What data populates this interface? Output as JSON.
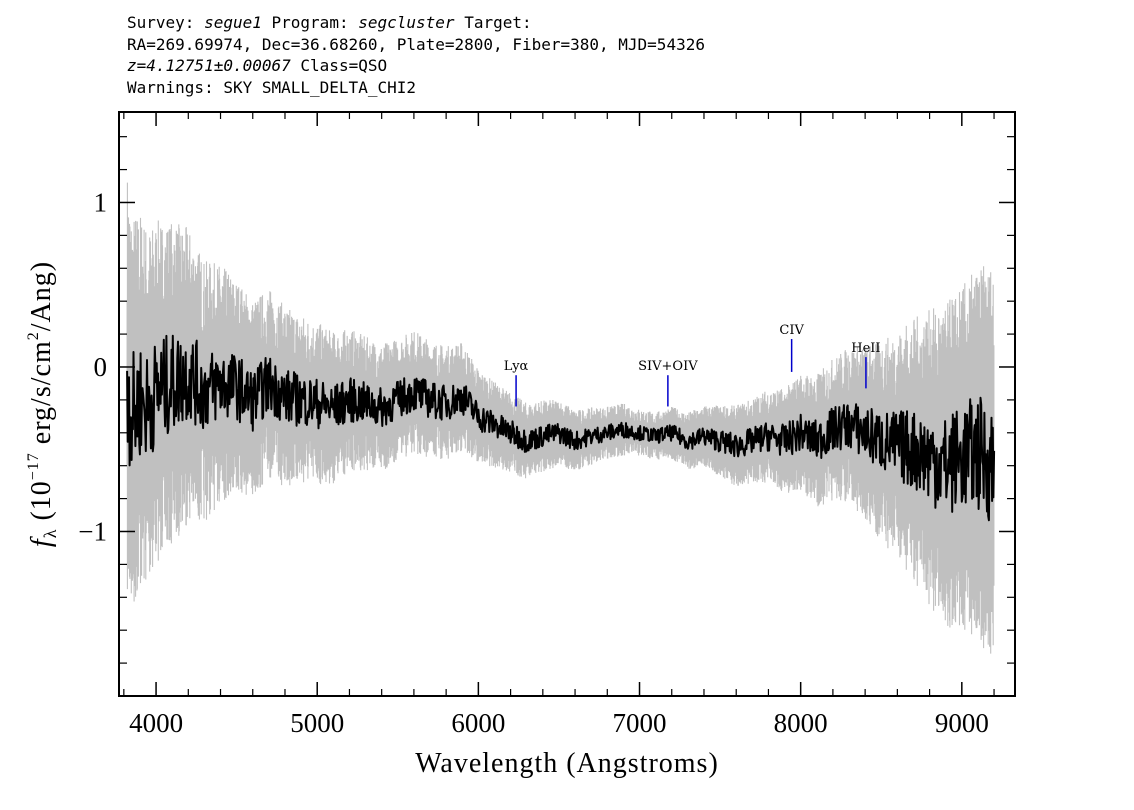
{
  "header": {
    "survey_label": "Survey:",
    "survey": "segue1",
    "program_label": "Program:",
    "program": "segcluster",
    "target_label": "Target:",
    "line2": "RA=269.69974, Dec=36.68260, Plate=2800, Fiber=380, MJD=54326",
    "redshift": "z=4.12751±0.00067",
    "class": "Class=QSO",
    "warnings": "Warnings: SKY SMALL_DELTA_CHI2"
  },
  "chart_data": {
    "type": "line",
    "xlabel": "Wavelength (Angstroms)",
    "ylabel_prefix": "f",
    "ylabel_sub": "λ",
    "ylabel_unit_a": "(10",
    "ylabel_exp": "−17",
    "ylabel_unit_b": " erg/s/cm",
    "ylabel_exp2": "2",
    "ylabel_unit_c": "/Ang)",
    "xlim": [
      3770,
      9330
    ],
    "ylim": [
      -2.0,
      1.55
    ],
    "x_ticks": [
      4000,
      5000,
      6000,
      7000,
      8000,
      9000
    ],
    "x_tick_labels": [
      "4000",
      "5000",
      "6000",
      "7000",
      "8000",
      "9000"
    ],
    "y_ticks": [
      -1,
      0,
      1
    ],
    "y_tick_labels": [
      "−1",
      "0",
      "1"
    ],
    "grid": false,
    "series": [
      {
        "role": "error",
        "color": "#c0c0c0",
        "x": [
          3820,
          3850,
          3900,
          3950,
          4000,
          4100,
          4200,
          4300,
          4400,
          4500,
          4600,
          4700,
          4800,
          4900,
          5000,
          5100,
          5200,
          5300,
          5400,
          5500,
          5600,
          5700,
          5800,
          5900,
          6000,
          6100,
          6200,
          6300,
          6400,
          6500,
          6600,
          6700,
          6800,
          6900,
          7000,
          7100,
          7200,
          7300,
          7400,
          7500,
          7600,
          7700,
          7800,
          7900,
          8000,
          8100,
          8200,
          8300,
          8400,
          8500,
          8600,
          8700,
          8800,
          8900,
          9000,
          9100,
          9200
        ],
        "values": [
          0.9,
          0.85,
          0.8,
          0.75,
          0.72,
          0.68,
          0.62,
          0.55,
          0.5,
          0.45,
          0.42,
          0.4,
          0.38,
          0.36,
          0.34,
          0.32,
          0.3,
          0.28,
          0.27,
          0.26,
          0.26,
          0.25,
          0.24,
          0.23,
          0.2,
          0.18,
          0.17,
          0.16,
          0.15,
          0.14,
          0.13,
          0.12,
          0.11,
          0.11,
          0.1,
          0.1,
          0.11,
          0.12,
          0.13,
          0.15,
          0.17,
          0.18,
          0.2,
          0.22,
          0.25,
          0.28,
          0.3,
          0.33,
          0.37,
          0.42,
          0.48,
          0.55,
          0.62,
          0.68,
          0.72,
          0.78,
          0.85
        ]
      },
      {
        "role": "flux",
        "color": "#000000",
        "x": [
          3820,
          3850,
          3900,
          3950,
          4000,
          4100,
          4200,
          4300,
          4400,
          4500,
          4600,
          4700,
          4800,
          4900,
          5000,
          5100,
          5200,
          5300,
          5400,
          5500,
          5600,
          5700,
          5800,
          5900,
          6000,
          6100,
          6200,
          6300,
          6400,
          6500,
          6600,
          6700,
          6800,
          6900,
          7000,
          7100,
          7200,
          7300,
          7400,
          7500,
          7600,
          7700,
          7800,
          7900,
          8000,
          8100,
          8200,
          8300,
          8400,
          8500,
          8600,
          8700,
          8800,
          8900,
          9000,
          9100,
          9200
        ],
        "values": [
          -0.1,
          -0.3,
          -0.2,
          -0.25,
          -0.15,
          -0.1,
          -0.05,
          -0.15,
          -0.1,
          -0.12,
          -0.2,
          -0.1,
          -0.18,
          -0.2,
          -0.22,
          -0.25,
          -0.2,
          -0.22,
          -0.25,
          -0.2,
          -0.15,
          -0.2,
          -0.22,
          -0.18,
          -0.3,
          -0.35,
          -0.4,
          -0.45,
          -0.42,
          -0.4,
          -0.45,
          -0.42,
          -0.4,
          -0.38,
          -0.4,
          -0.42,
          -0.4,
          -0.45,
          -0.42,
          -0.45,
          -0.48,
          -0.45,
          -0.42,
          -0.45,
          -0.4,
          -0.45,
          -0.38,
          -0.35,
          -0.4,
          -0.45,
          -0.48,
          -0.5,
          -0.55,
          -0.6,
          -0.55,
          -0.52,
          -0.6
        ]
      }
    ],
    "annotations": [
      {
        "label": "Lyα",
        "x": 6234,
        "y_top": -0.05,
        "y_bottom": -0.24,
        "color": "#0000cc"
      },
      {
        "label": "SIV+OIV",
        "x": 7176,
        "y_top": -0.05,
        "y_bottom": -0.24,
        "color": "#0000cc"
      },
      {
        "label": "CIV",
        "x": 7944,
        "y_top": 0.17,
        "y_bottom": -0.03,
        "color": "#0000cc"
      },
      {
        "label": "HeII",
        "x": 8405,
        "y_top": 0.06,
        "y_bottom": -0.13,
        "color": "#0000cc"
      }
    ]
  }
}
